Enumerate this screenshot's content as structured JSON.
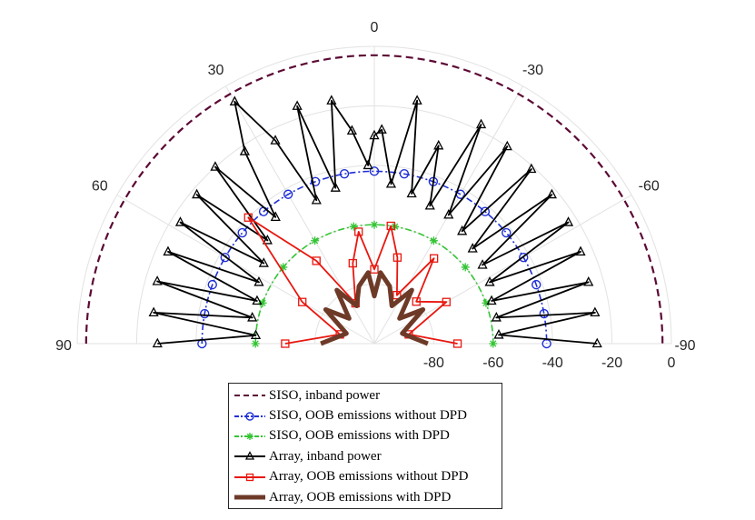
{
  "chart_data": {
    "type": "polar",
    "theta_range": [
      -90,
      90
    ],
    "r_range": [
      -100,
      0
    ],
    "theta_ticks": [
      90,
      60,
      30,
      0,
      -30,
      -60,
      -90
    ],
    "r_ticks": [
      -80,
      -60,
      -40,
      -20,
      0
    ],
    "grid": true,
    "legend_position": "bottom",
    "series": [
      {
        "name": "SISO, inband power",
        "color": "#5c0a35",
        "style": "dashed",
        "marker": "none",
        "theta": [
          -90,
          -60,
          -30,
          0,
          30,
          60,
          90
        ],
        "r": [
          -3,
          -3,
          -3,
          -3,
          -3,
          -3,
          -3
        ]
      },
      {
        "name": "SISO, OOB emissions without DPD",
        "color": "#1f2fd6",
        "style": "dashdot",
        "marker": "circle",
        "theta": [
          -90,
          -80,
          -70,
          -60,
          -50,
          -40,
          -30,
          -20,
          -10,
          0,
          10,
          20,
          30,
          40,
          50,
          60,
          70,
          80,
          90
        ],
        "r": [
          -42,
          -42,
          -42,
          -42,
          -42,
          -42,
          -42,
          -42,
          -42,
          -42,
          -42,
          -42,
          -42,
          -42,
          -42,
          -42,
          -42,
          -42,
          -42
        ]
      },
      {
        "name": "SISO, OOB emissions with DPD",
        "color": "#33c433",
        "style": "dashdot",
        "marker": "star",
        "theta": [
          -90,
          -70,
          -50,
          -30,
          -10,
          0,
          10,
          30,
          50,
          70,
          90
        ],
        "r": [
          -60,
          -60,
          -60,
          -60,
          -60,
          -60,
          -60,
          -60,
          -60,
          -60,
          -60
        ]
      },
      {
        "name": "Array, inband power",
        "color": "#000000",
        "style": "solid",
        "marker": "triangle",
        "theta": [
          -90,
          -86,
          -82,
          -78,
          -74,
          -70,
          -66,
          -62,
          -58,
          -54,
          -50,
          -46,
          -42,
          -38,
          -34,
          -30,
          -26,
          -22,
          -18,
          -14,
          -10,
          -6,
          -2,
          0,
          2,
          6,
          10,
          14,
          18,
          22,
          26,
          30,
          34,
          38,
          42,
          46,
          50,
          54,
          58,
          62,
          66,
          70,
          74,
          78,
          82,
          86,
          90
        ],
        "r": [
          -25,
          -58,
          -25,
          -58,
          -25,
          -58,
          -24,
          -56,
          -23,
          -55,
          -22,
          -54,
          -21,
          -52,
          -20,
          -50,
          -18,
          -50,
          -30,
          -48,
          -17,
          -46,
          -28,
          -30,
          -40,
          -28,
          -17,
          -46,
          -16,
          -48,
          -24,
          -6,
          -22,
          -46,
          -20,
          -50,
          -22,
          -54,
          -23,
          -56,
          -24,
          -58,
          -24,
          -58,
          -25,
          -60,
          -27
        ]
      },
      {
        "name": "Array, OOB emissions without DPD",
        "color": "#e8170f",
        "style": "solid",
        "marker": "square",
        "theta": [
          -90,
          -75,
          -60,
          -45,
          -35,
          -25,
          -15,
          -8,
          0,
          8,
          15,
          25,
          35,
          45,
          60,
          75,
          90
        ],
        "r": [
          -72,
          -88,
          -72,
          -80,
          -65,
          -82,
          -70,
          -60,
          -75,
          -62,
          -72,
          -85,
          -66,
          -40,
          -72,
          -88,
          -70
        ],
        "series_note": ""
      },
      {
        "name": "Array, OOB emissions with DPD",
        "color": "#6e3a28",
        "style": "solid",
        "marker": "none",
        "theta": [
          -90,
          -70,
          -55,
          -45,
          -35,
          -25,
          -15,
          -5,
          0,
          5,
          15,
          25,
          35,
          45,
          55,
          70,
          90
        ],
        "r": [
          -82,
          -90,
          -80,
          -88,
          -78,
          -86,
          -80,
          -76,
          -84,
          -76,
          -80,
          -86,
          -78,
          -88,
          -80,
          -90,
          -82
        ]
      }
    ]
  }
}
